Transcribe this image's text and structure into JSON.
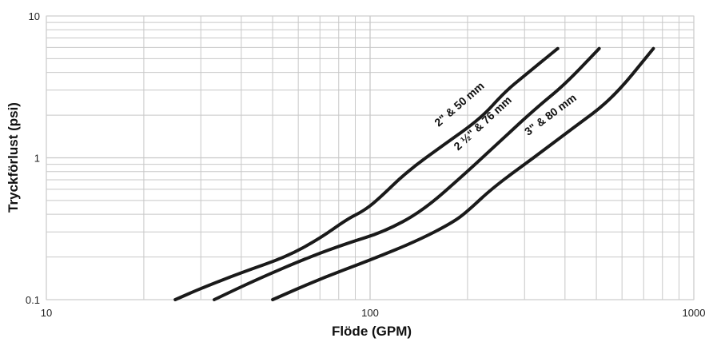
{
  "chart_data": {
    "type": "line",
    "title": "",
    "xlabel": "Flöde (GPM)",
    "ylabel": "Tryckförlust (psi)",
    "x_scale": "log",
    "y_scale": "log",
    "xlim": [
      10,
      1000
    ],
    "ylim": [
      0.1,
      10
    ],
    "grid": true,
    "x_ticks": [
      "10",
      "100",
      "1000"
    ],
    "y_ticks": [
      "0.1",
      "1",
      "10"
    ],
    "line_color": "#1a1a1a",
    "grid_color": "#c8c8c8",
    "series": [
      {
        "name": "2\" & 50 mm",
        "x": [
          25,
          30,
          40,
          55,
          70,
          85,
          95,
          105,
          130,
          170,
          220,
          260,
          300,
          380
        ],
        "y": [
          0.1,
          0.12,
          0.155,
          0.2,
          0.27,
          0.37,
          0.42,
          0.5,
          0.8,
          1.25,
          1.9,
          2.9,
          3.8,
          5.9
        ]
      },
      {
        "name": "2 ½\" & 76 mm",
        "x": [
          33,
          45,
          65,
          85,
          110,
          145,
          200,
          260,
          330,
          400,
          510
        ],
        "y": [
          0.1,
          0.14,
          0.2,
          0.25,
          0.3,
          0.42,
          0.8,
          1.4,
          2.3,
          3.3,
          5.9
        ]
      },
      {
        "name": "3\" & 80 mm",
        "x": [
          50,
          70,
          100,
          140,
          180,
          200,
          240,
          320,
          420,
          560,
          750
        ],
        "y": [
          0.1,
          0.14,
          0.19,
          0.26,
          0.35,
          0.42,
          0.62,
          1.0,
          1.6,
          2.6,
          5.9
        ]
      }
    ]
  }
}
